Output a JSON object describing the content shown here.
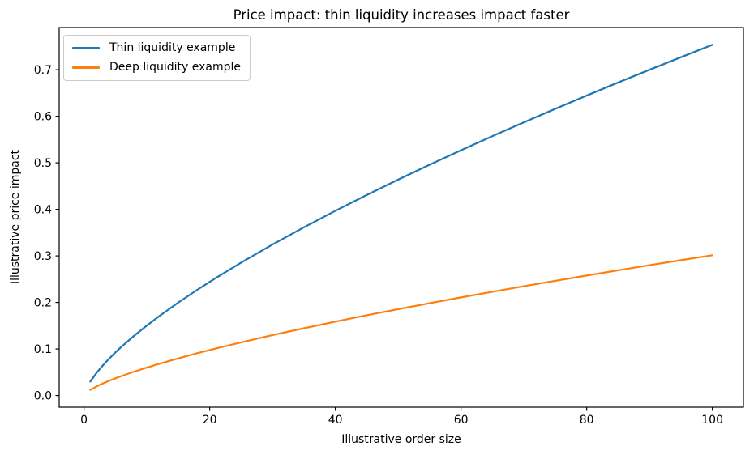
{
  "chart_data": {
    "type": "line",
    "title": "Price impact: thin liquidity increases impact faster",
    "xlabel": "Illustrative order size",
    "ylabel": "Illustrative price impact",
    "xlim": [
      -3.95,
      104.95
    ],
    "ylim": [
      -0.0251,
      0.7907
    ],
    "x_tick_values": [
      0,
      20,
      40,
      60,
      80,
      100
    ],
    "x_tick_labels": [
      "0",
      "20",
      "40",
      "60",
      "80",
      "100"
    ],
    "y_tick_values": [
      0.0,
      0.1,
      0.2,
      0.3,
      0.4,
      0.5,
      0.6,
      0.7
    ],
    "y_tick_labels": [
      "0.0",
      "0.1",
      "0.2",
      "0.3",
      "0.4",
      "0.5",
      "0.6",
      "0.7"
    ],
    "grid": false,
    "legend_position": "upper left",
    "x": [
      1,
      2,
      3,
      4,
      5,
      6,
      8,
      10,
      12,
      15,
      18,
      21,
      25,
      30,
      35,
      40,
      45,
      50,
      55,
      60,
      65,
      70,
      75,
      80,
      85,
      90,
      95,
      100
    ],
    "series": [
      {
        "name": "Thin liquidity example",
        "color": "#1f77b4",
        "values": [
          0.03,
          0.0487,
          0.0647,
          0.0792,
          0.0926,
          0.1052,
          0.1286,
          0.1504,
          0.1708,
          0.1997,
          0.2269,
          0.2527,
          0.2855,
          0.3244,
          0.3614,
          0.3968,
          0.4309,
          0.4639,
          0.4959,
          0.527,
          0.5573,
          0.587,
          0.616,
          0.6445,
          0.6725,
          0.6999,
          0.7269,
          0.7536
        ]
      },
      {
        "name": "Deep liquidity example",
        "color": "#ff7f0e",
        "values": [
          0.012,
          0.0195,
          0.0259,
          0.0317,
          0.037,
          0.0421,
          0.0514,
          0.0601,
          0.0683,
          0.0799,
          0.0908,
          0.1011,
          0.1142,
          0.1298,
          0.1445,
          0.1587,
          0.1724,
          0.1855,
          0.1983,
          0.2108,
          0.2229,
          0.2348,
          0.2464,
          0.2578,
          0.269,
          0.28,
          0.2908,
          0.3014
        ]
      }
    ]
  }
}
